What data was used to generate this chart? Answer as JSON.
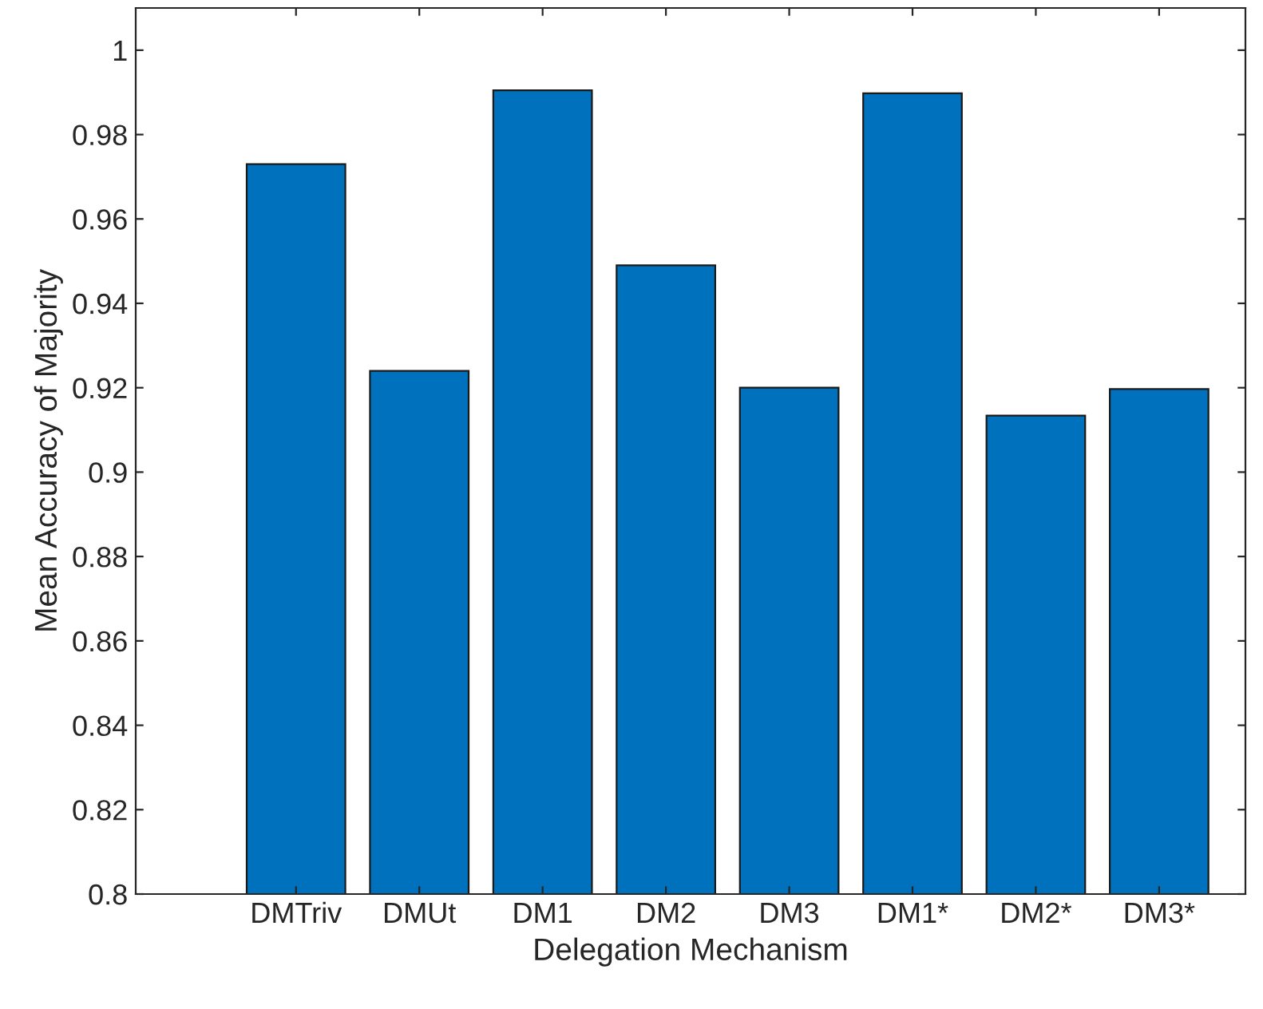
{
  "chart_data": {
    "type": "bar",
    "xlabel": "Delegation Mechanism",
    "ylabel": "Mean Accuracy of Majority",
    "categories": [
      "DMTriv",
      "DMUt",
      "DM1",
      "DM2",
      "DM3",
      "DM1*",
      "DM2*",
      "DM3*"
    ],
    "values": [
      0.973,
      0.924,
      0.9905,
      0.949,
      0.92,
      0.9898,
      0.9134,
      0.9197
    ],
    "color": "#0072bd",
    "ylim": [
      0.8,
      1.01
    ],
    "yticks": [
      0.8,
      0.82,
      0.84,
      0.86,
      0.88,
      0.9,
      0.92,
      0.94,
      0.96,
      0.98,
      1
    ],
    "grid": false
  }
}
